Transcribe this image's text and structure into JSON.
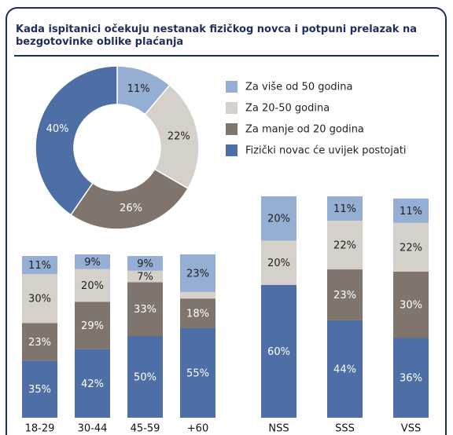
{
  "chart_data": [
    {
      "type": "pie",
      "title": "Kada ispitanici očekuju nestanak fizičkog novca i potpuni prelazak na bezgotovinke oblike plaćanja",
      "categories": [
        "Za više od 50 godina",
        "Za 20-50 godina",
        "Za manje od 20 godina",
        "Fizički novac će uvijek postojati"
      ],
      "values": [
        11,
        22,
        26,
        40
      ],
      "value_labels": [
        "11%",
        "22%",
        "26%",
        "40%"
      ],
      "colors": [
        "#95aed4",
        "#d5d0c9",
        "#80756d",
        "#4d6fa5"
      ],
      "donut": true,
      "legend": "top-right"
    },
    {
      "type": "bar",
      "stacked": true,
      "categories": [
        "18-29",
        "30-44",
        "45-59",
        "+60"
      ],
      "ylim": [
        0,
        100
      ],
      "series": [
        {
          "color": "#95aed4",
          "values": [
            11,
            9,
            9,
            23
          ],
          "value_labels": [
            "11%",
            "9%",
            "9%",
            "23%"
          ]
        },
        {
          "color": "#d5d0c9",
          "values": [
            30,
            20,
            7,
            4
          ],
          "value_labels": [
            "30%",
            "20%",
            "7%",
            null
          ]
        },
        {
          "color": "#80756d",
          "values": [
            23,
            29,
            33,
            18
          ],
          "value_labels": [
            "23%",
            "29%",
            "33%",
            "18%"
          ]
        },
        {
          "color": "#4d6fa5",
          "values": [
            35,
            42,
            50,
            55
          ],
          "value_labels": [
            "35%",
            "42%",
            "50%",
            "55%"
          ]
        }
      ]
    },
    {
      "type": "bar",
      "stacked": true,
      "categories": [
        "NSS",
        "SSS",
        "VSS"
      ],
      "ylim": [
        0,
        100
      ],
      "series": [
        {
          "color": "#95aed4",
          "values": [
            20,
            11,
            11
          ],
          "value_labels": [
            "20%",
            "11%",
            "11%"
          ]
        },
        {
          "color": "#d5d0c9",
          "values": [
            20,
            22,
            22
          ],
          "value_labels": [
            "20%",
            "22%",
            "22%"
          ]
        },
        {
          "color": "#80756d",
          "values": [
            0,
            23,
            30
          ],
          "value_labels": [
            null,
            "23%",
            "30%"
          ]
        },
        {
          "color": "#4d6fa5",
          "values": [
            60,
            44,
            36
          ],
          "value_labels": [
            "60%",
            "44%",
            "36%"
          ]
        }
      ]
    }
  ]
}
